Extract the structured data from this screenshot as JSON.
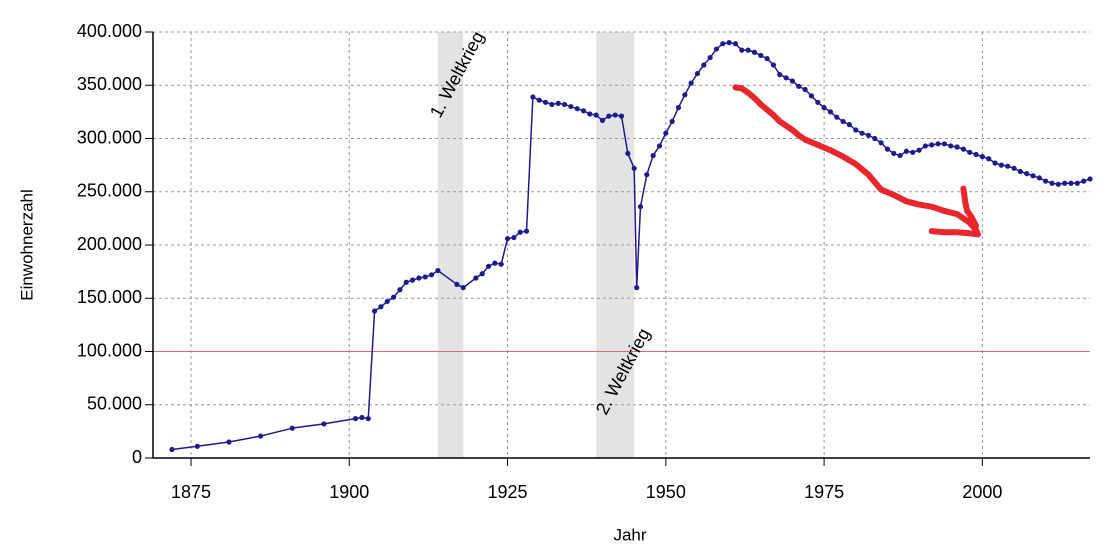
{
  "chart_data": {
    "type": "line",
    "x_label": "Jahr",
    "y_label": "Einwohnerzahl",
    "xlim": [
      1869,
      2017
    ],
    "xticks": [
      1875,
      1900,
      1925,
      1950,
      1975,
      2000
    ],
    "ylim": [
      0,
      400000
    ],
    "yticks": [
      0,
      {
        "value": 50000,
        "label": "50.000"
      },
      {
        "value": 100000,
        "label": "100.000"
      },
      {
        "value": 150000,
        "label": "150.000"
      },
      {
        "value": 200000,
        "label": "200.000"
      },
      {
        "value": 250000,
        "label": "250.000"
      },
      {
        "value": 300000,
        "label": "300.000"
      },
      {
        "value": 350000,
        "label": "350.000"
      },
      {
        "value": 400000,
        "label": "400.000"
      }
    ],
    "grid": true,
    "reference_line": {
      "value": 100000,
      "color": "#e06a6a"
    },
    "shaded_periods": [
      {
        "start": 1914,
        "end": 1918,
        "label": "1. Weltkrieg"
      },
      {
        "start": 1939,
        "end": 1945,
        "label": "2. Weltkrieg"
      }
    ],
    "series": [
      {
        "color": "#1c1c8e",
        "markers": true,
        "width": 1.5,
        "x": [
          1872,
          1876,
          1881,
          1886,
          1891,
          1896,
          1901,
          1902,
          1903,
          1904,
          1905,
          1906,
          1907,
          1908,
          1909,
          1910,
          1911,
          1912,
          1913,
          1914,
          1917,
          1918,
          1920,
          1921,
          1922,
          1923,
          1924,
          1925,
          1926,
          1927,
          1928,
          1929,
          1930,
          1931,
          1932,
          1933,
          1934,
          1935,
          1936,
          1937,
          1938,
          1939,
          1940,
          1941,
          1942,
          1943,
          1944,
          1945,
          1945.4,
          1946,
          1947,
          1948,
          1949,
          1950,
          1951,
          1952,
          1953,
          1954,
          1955,
          1956,
          1957,
          1958,
          1959,
          1960,
          1961,
          1962,
          1963,
          1964,
          1965,
          1966,
          1967,
          1968,
          1969,
          1970,
          1971,
          1972,
          1973,
          1974,
          1975,
          1976,
          1977,
          1978,
          1979,
          1980,
          1981,
          1982,
          1983,
          1984,
          1985,
          1986,
          1987,
          1988,
          1989,
          1990,
          1991,
          1992,
          1993,
          1994,
          1995,
          1996,
          1997,
          1998,
          1999,
          2000,
          2001,
          2002,
          2003,
          2004,
          2005,
          2006,
          2007,
          2008,
          2009,
          2010,
          2011,
          2012,
          2013,
          2014,
          2015,
          2016,
          2017
        ],
        "values": [
          8000,
          11000,
          15000,
          20600,
          28000,
          32000,
          37000,
          38000,
          37000,
          138000,
          142000,
          147000,
          151000,
          158000,
          165000,
          167000,
          169000,
          170000,
          172000,
          176000,
          163000,
          160000,
          169000,
          173000,
          180000,
          183000,
          182000,
          206000,
          207000,
          212000,
          213000,
          339000,
          336000,
          334000,
          332000,
          333000,
          332000,
          330000,
          328000,
          326000,
          323000,
          322000,
          317000,
          321000,
          322000,
          321000,
          286000,
          272000,
          160000,
          236000,
          266000,
          284000,
          293000,
          305000,
          316000,
          329000,
          341000,
          352000,
          361000,
          369000,
          376000,
          384000,
          389000,
          390000,
          389000,
          383000,
          383000,
          381000,
          378000,
          375000,
          369000,
          360000,
          357000,
          354000,
          349000,
          346000,
          340000,
          334000,
          329000,
          325000,
          320000,
          316000,
          313000,
          308000,
          305000,
          303000,
          300000,
          296000,
          290000,
          286000,
          284000,
          288000,
          287000,
          289000,
          293000,
          294000,
          295000,
          295000,
          293000,
          292000,
          290000,
          287000,
          285000,
          283000,
          281000,
          277000,
          275000,
          274000,
          272000,
          269000,
          267000,
          265000,
          263000,
          260000,
          258000,
          257000,
          258000,
          258000,
          258000,
          260000,
          262000
        ]
      },
      {
        "color": "#e8262b",
        "markers": false,
        "width": 6,
        "x": [
          1961,
          1962,
          1963,
          1964,
          1965,
          1966,
          1967,
          1968,
          1969,
          1970,
          1971,
          1972,
          1974,
          1976,
          1978,
          1980,
          1982,
          1984,
          1986,
          1988,
          1990,
          1992,
          1994,
          1996,
          1997,
          1998,
          1999,
          1999.3,
          1998,
          1996,
          1994,
          1992,
          null,
          1997,
          1997.3,
          1997.6,
          1998.3,
          1999
        ],
        "values": [
          348000,
          347000,
          343000,
          338000,
          332000,
          327000,
          322000,
          316000,
          312000,
          308000,
          303000,
          299000,
          294000,
          289000,
          283000,
          276000,
          266000,
          252000,
          247000,
          241000,
          238000,
          236000,
          232000,
          229000,
          225000,
          221000,
          214000,
          210000,
          211000,
          212000,
          212000,
          213000,
          null,
          253000,
          240000,
          232000,
          226000,
          218000
        ]
      }
    ]
  }
}
